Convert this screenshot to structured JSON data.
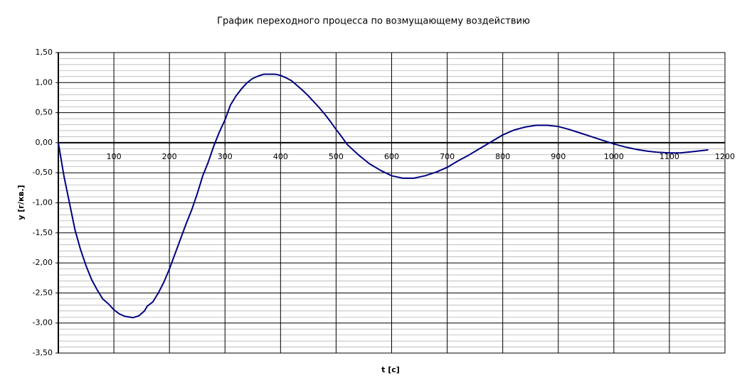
{
  "chart_data": {
    "type": "line",
    "title": "График переходного процесса по возмущающему воздействию",
    "x_label": "t [c]",
    "y_label": "y [г/кв.]",
    "x": [
      0,
      10,
      20,
      30,
      40,
      50,
      60,
      70,
      80,
      90,
      100,
      110,
      120,
      135,
      145,
      155,
      160,
      170,
      180,
      190,
      200,
      210,
      220,
      230,
      240,
      250,
      260,
      270,
      280,
      290,
      300,
      310,
      320,
      330,
      340,
      350,
      360,
      370,
      380,
      390,
      400,
      410,
      420,
      430,
      440,
      450,
      460,
      470,
      480,
      490,
      500,
      510,
      520,
      540,
      560,
      580,
      600,
      620,
      640,
      660,
      680,
      700,
      720,
      740,
      760,
      780,
      800,
      820,
      840,
      860,
      880,
      900,
      920,
      940,
      960,
      980,
      1000,
      1020,
      1040,
      1060,
      1080,
      1100,
      1120,
      1140,
      1170
    ],
    "series": [
      {
        "name": "y",
        "color": "#000080",
        "values": [
          0,
          -0.55,
          -1.0,
          -1.45,
          -1.78,
          -2.05,
          -2.28,
          -2.45,
          -2.6,
          -2.68,
          -2.78,
          -2.85,
          -2.89,
          -2.91,
          -2.88,
          -2.8,
          -2.72,
          -2.65,
          -2.5,
          -2.32,
          -2.1,
          -1.85,
          -1.6,
          -1.35,
          -1.12,
          -0.85,
          -0.55,
          -0.32,
          -0.05,
          0.18,
          0.38,
          0.63,
          0.78,
          0.9,
          1.0,
          1.07,
          1.11,
          1.14,
          1.14,
          1.14,
          1.12,
          1.08,
          1.03,
          0.95,
          0.87,
          0.78,
          0.68,
          0.58,
          0.47,
          0.35,
          0.22,
          0.1,
          -0.03,
          -0.2,
          -0.35,
          -0.46,
          -0.55,
          -0.59,
          -0.59,
          -0.55,
          -0.49,
          -0.41,
          -0.3,
          -0.2,
          -0.09,
          0.02,
          0.13,
          0.21,
          0.26,
          0.29,
          0.29,
          0.27,
          0.22,
          0.16,
          0.1,
          0.04,
          -0.02,
          -0.07,
          -0.11,
          -0.14,
          -0.16,
          -0.17,
          -0.17,
          -0.15,
          -0.12
        ]
      }
    ],
    "xlim": [
      0,
      1200
    ],
    "xticks": [
      100,
      200,
      300,
      400,
      500,
      600,
      700,
      800,
      900,
      1000,
      1100,
      1200
    ],
    "ylim": [
      -3.5,
      1.5
    ],
    "yticks": [
      {
        "value": 1.5,
        "label": "1,50"
      },
      {
        "value": 1.0,
        "label": "1,00"
      },
      {
        "value": 0.5,
        "label": "0,50"
      },
      {
        "value": 0,
        "label": "0,00"
      },
      {
        "value": -0.5,
        "label": "-0,50"
      },
      {
        "value": -1.0,
        "label": "-1,00"
      },
      {
        "value": -1.5,
        "label": "-1,50"
      },
      {
        "value": -2.0,
        "label": "-2,00"
      },
      {
        "value": -2.5,
        "label": "-2,50"
      },
      {
        "value": -3.0,
        "label": "-3,00"
      },
      {
        "value": -3.5,
        "label": "-3,50"
      }
    ],
    "grid": true
  }
}
